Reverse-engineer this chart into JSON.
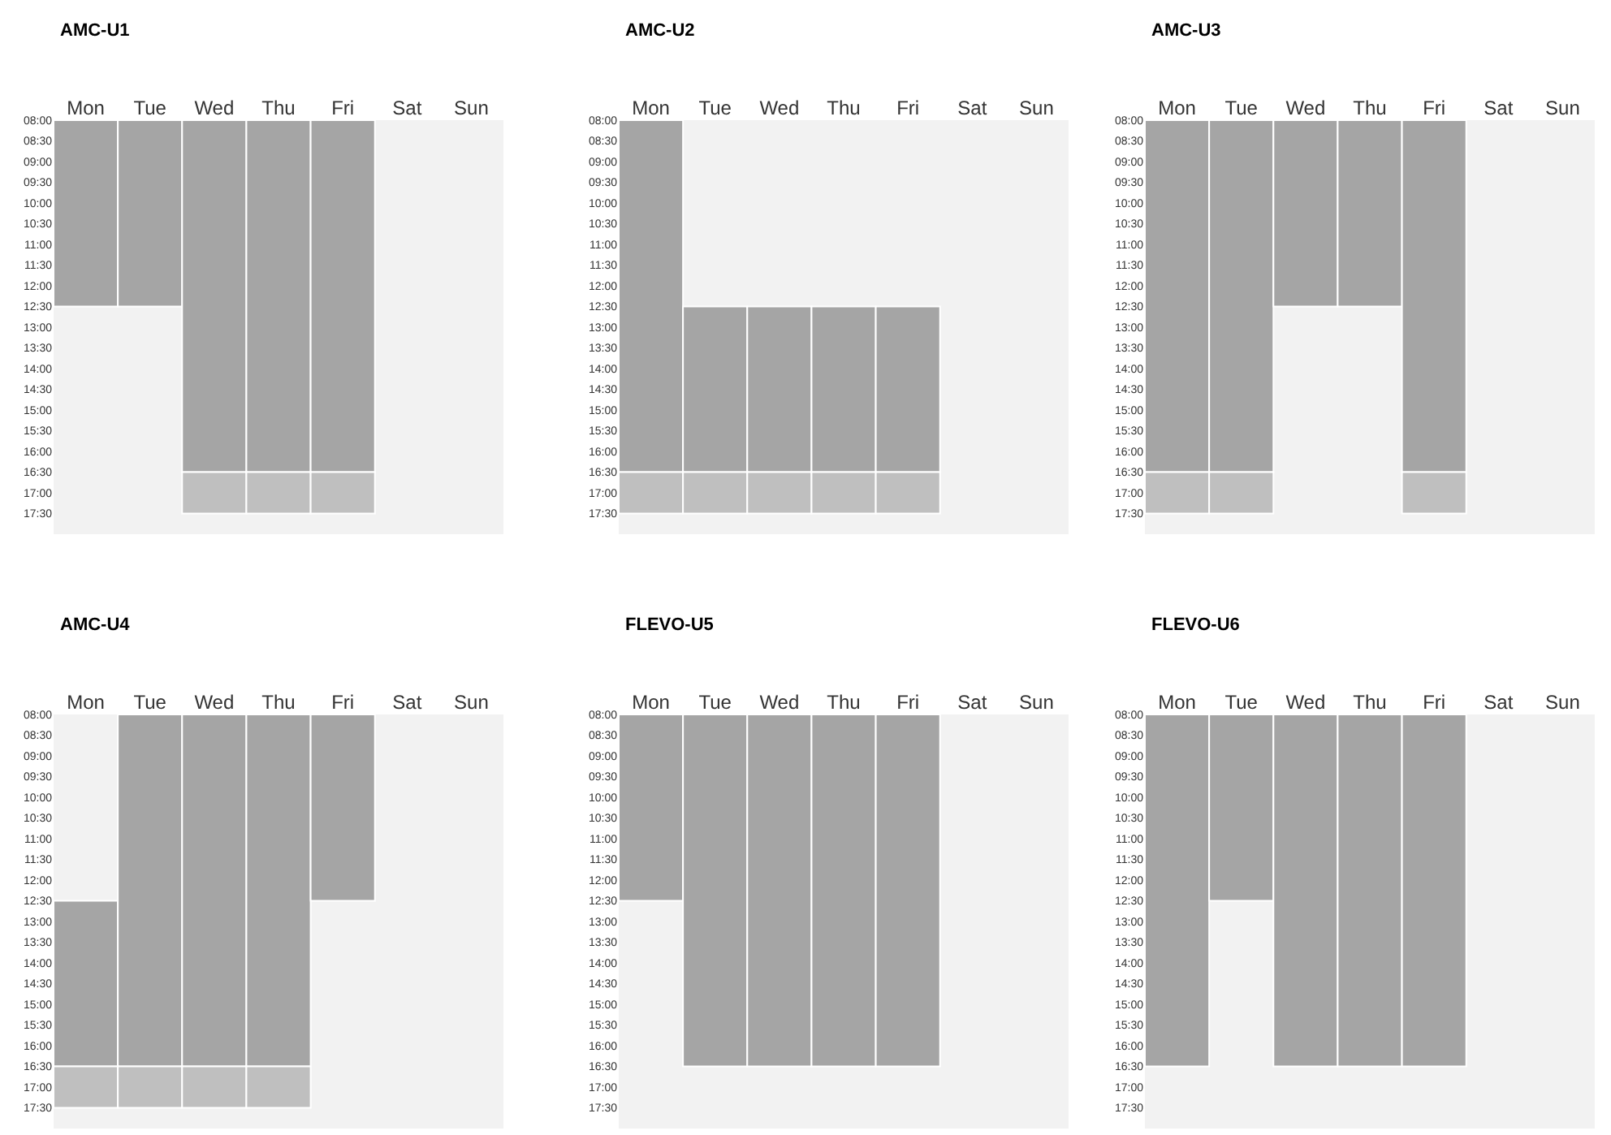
{
  "chart_data": [
    {
      "type": "bar",
      "title": "AMC-U1",
      "categories": [
        "Mon",
        "Tue",
        "Wed",
        "Thu",
        "Fri",
        "Sat",
        "Sun"
      ],
      "ylim": [
        18,
        8
      ],
      "yticks": [
        {
          "value": 8,
          "label": "08:00"
        },
        {
          "value": 8.5,
          "label": "08:30"
        },
        {
          "value": 9,
          "label": "09:00"
        },
        {
          "value": 9.5,
          "label": "09:30"
        },
        {
          "value": 10,
          "label": "10:00"
        },
        {
          "value": 10.5,
          "label": "10:30"
        },
        {
          "value": 11,
          "label": "11:00"
        },
        {
          "value": 11.5,
          "label": "11:30"
        },
        {
          "value": 12,
          "label": "12:00"
        },
        {
          "value": 12.5,
          "label": "12:30"
        },
        {
          "value": 13,
          "label": "13:00"
        },
        {
          "value": 13.5,
          "label": "13:30"
        },
        {
          "value": 14,
          "label": "14:00"
        },
        {
          "value": 14.5,
          "label": "14:30"
        },
        {
          "value": 15,
          "label": "15:00"
        },
        {
          "value": 15.5,
          "label": "15:30"
        },
        {
          "value": 16,
          "label": "16:00"
        },
        {
          "value": 16.5,
          "label": "16:30"
        },
        {
          "value": 17,
          "label": "17:00"
        },
        {
          "value": 17.5,
          "label": "17:30"
        }
      ],
      "series": [
        {
          "color": "#a5a5a5",
          "base": [
            8,
            8,
            8,
            8,
            8,
            null,
            null
          ],
          "values": [
            4.5,
            4.5,
            8.5,
            8.5,
            8.5,
            null,
            null
          ]
        },
        {
          "color": "#bfbfbf",
          "base": [
            null,
            null,
            16.5,
            16.5,
            16.5,
            null,
            null
          ],
          "values": [
            null,
            null,
            1,
            1,
            1,
            null,
            null
          ]
        }
      ]
    },
    {
      "type": "bar",
      "title": "AMC-U2",
      "categories": [
        "Mon",
        "Tue",
        "Wed",
        "Thu",
        "Fri",
        "Sat",
        "Sun"
      ],
      "ylim": [
        18,
        8
      ],
      "yticks": [
        {
          "value": 8,
          "label": "08:00"
        },
        {
          "value": 8.5,
          "label": "08:30"
        },
        {
          "value": 9,
          "label": "09:00"
        },
        {
          "value": 9.5,
          "label": "09:30"
        },
        {
          "value": 10,
          "label": "10:00"
        },
        {
          "value": 10.5,
          "label": "10:30"
        },
        {
          "value": 11,
          "label": "11:00"
        },
        {
          "value": 11.5,
          "label": "11:30"
        },
        {
          "value": 12,
          "label": "12:00"
        },
        {
          "value": 12.5,
          "label": "12:30"
        },
        {
          "value": 13,
          "label": "13:00"
        },
        {
          "value": 13.5,
          "label": "13:30"
        },
        {
          "value": 14,
          "label": "14:00"
        },
        {
          "value": 14.5,
          "label": "14:30"
        },
        {
          "value": 15,
          "label": "15:00"
        },
        {
          "value": 15.5,
          "label": "15:30"
        },
        {
          "value": 16,
          "label": "16:00"
        },
        {
          "value": 16.5,
          "label": "16:30"
        },
        {
          "value": 17,
          "label": "17:00"
        },
        {
          "value": 17.5,
          "label": "17:30"
        }
      ],
      "series": [
        {
          "color": "#a5a5a5",
          "base": [
            8,
            12.5,
            12.5,
            12.5,
            12.5,
            null,
            null
          ],
          "values": [
            8.5,
            4,
            4,
            4,
            4,
            null,
            null
          ]
        },
        {
          "color": "#bfbfbf",
          "base": [
            16.5,
            16.5,
            16.5,
            16.5,
            16.5,
            null,
            null
          ],
          "values": [
            1,
            1,
            1,
            1,
            1,
            null,
            null
          ]
        }
      ]
    },
    {
      "type": "bar",
      "title": "AMC-U3",
      "categories": [
        "Mon",
        "Tue",
        "Wed",
        "Thu",
        "Fri",
        "Sat",
        "Sun"
      ],
      "ylim": [
        18,
        8
      ],
      "yticks": [
        {
          "value": 8,
          "label": "08:00"
        },
        {
          "value": 8.5,
          "label": "08:30"
        },
        {
          "value": 9,
          "label": "09:00"
        },
        {
          "value": 9.5,
          "label": "09:30"
        },
        {
          "value": 10,
          "label": "10:00"
        },
        {
          "value": 10.5,
          "label": "10:30"
        },
        {
          "value": 11,
          "label": "11:00"
        },
        {
          "value": 11.5,
          "label": "11:30"
        },
        {
          "value": 12,
          "label": "12:00"
        },
        {
          "value": 12.5,
          "label": "12:30"
        },
        {
          "value": 13,
          "label": "13:00"
        },
        {
          "value": 13.5,
          "label": "13:30"
        },
        {
          "value": 14,
          "label": "14:00"
        },
        {
          "value": 14.5,
          "label": "14:30"
        },
        {
          "value": 15,
          "label": "15:00"
        },
        {
          "value": 15.5,
          "label": "15:30"
        },
        {
          "value": 16,
          "label": "16:00"
        },
        {
          "value": 16.5,
          "label": "16:30"
        },
        {
          "value": 17,
          "label": "17:00"
        },
        {
          "value": 17.5,
          "label": "17:30"
        }
      ],
      "series": [
        {
          "color": "#a5a5a5",
          "base": [
            8,
            8,
            8,
            8,
            8,
            null,
            null
          ],
          "values": [
            8.5,
            8.5,
            4.5,
            4.5,
            8.5,
            null,
            null
          ]
        },
        {
          "color": "#bfbfbf",
          "base": [
            16.5,
            16.5,
            null,
            null,
            16.5,
            null,
            null
          ],
          "values": [
            1,
            1,
            null,
            null,
            1,
            null,
            null
          ]
        }
      ]
    },
    {
      "type": "bar",
      "title": "AMC-U4",
      "categories": [
        "Mon",
        "Tue",
        "Wed",
        "Thu",
        "Fri",
        "Sat",
        "Sun"
      ],
      "ylim": [
        18,
        8
      ],
      "yticks": [
        {
          "value": 8,
          "label": "08:00"
        },
        {
          "value": 8.5,
          "label": "08:30"
        },
        {
          "value": 9,
          "label": "09:00"
        },
        {
          "value": 9.5,
          "label": "09:30"
        },
        {
          "value": 10,
          "label": "10:00"
        },
        {
          "value": 10.5,
          "label": "10:30"
        },
        {
          "value": 11,
          "label": "11:00"
        },
        {
          "value": 11.5,
          "label": "11:30"
        },
        {
          "value": 12,
          "label": "12:00"
        },
        {
          "value": 12.5,
          "label": "12:30"
        },
        {
          "value": 13,
          "label": "13:00"
        },
        {
          "value": 13.5,
          "label": "13:30"
        },
        {
          "value": 14,
          "label": "14:00"
        },
        {
          "value": 14.5,
          "label": "14:30"
        },
        {
          "value": 15,
          "label": "15:00"
        },
        {
          "value": 15.5,
          "label": "15:30"
        },
        {
          "value": 16,
          "label": "16:00"
        },
        {
          "value": 16.5,
          "label": "16:30"
        },
        {
          "value": 17,
          "label": "17:00"
        },
        {
          "value": 17.5,
          "label": "17:30"
        }
      ],
      "series": [
        {
          "color": "#a5a5a5",
          "base": [
            12.5,
            8,
            8,
            8,
            8,
            null,
            null
          ],
          "values": [
            4,
            8.5,
            8.5,
            8.5,
            4.5,
            null,
            null
          ]
        },
        {
          "color": "#bfbfbf",
          "base": [
            16.5,
            16.5,
            16.5,
            16.5,
            null,
            null,
            null
          ],
          "values": [
            1,
            1,
            1,
            1,
            null,
            null,
            null
          ]
        }
      ]
    },
    {
      "type": "bar",
      "title": "FLEVO-U5",
      "categories": [
        "Mon",
        "Tue",
        "Wed",
        "Thu",
        "Fri",
        "Sat",
        "Sun"
      ],
      "ylim": [
        18,
        8
      ],
      "yticks": [
        {
          "value": 8,
          "label": "08:00"
        },
        {
          "value": 8.5,
          "label": "08:30"
        },
        {
          "value": 9,
          "label": "09:00"
        },
        {
          "value": 9.5,
          "label": "09:30"
        },
        {
          "value": 10,
          "label": "10:00"
        },
        {
          "value": 10.5,
          "label": "10:30"
        },
        {
          "value": 11,
          "label": "11:00"
        },
        {
          "value": 11.5,
          "label": "11:30"
        },
        {
          "value": 12,
          "label": "12:00"
        },
        {
          "value": 12.5,
          "label": "12:30"
        },
        {
          "value": 13,
          "label": "13:00"
        },
        {
          "value": 13.5,
          "label": "13:30"
        },
        {
          "value": 14,
          "label": "14:00"
        },
        {
          "value": 14.5,
          "label": "14:30"
        },
        {
          "value": 15,
          "label": "15:00"
        },
        {
          "value": 15.5,
          "label": "15:30"
        },
        {
          "value": 16,
          "label": "16:00"
        },
        {
          "value": 16.5,
          "label": "16:30"
        },
        {
          "value": 17,
          "label": "17:00"
        },
        {
          "value": 17.5,
          "label": "17:30"
        }
      ],
      "series": [
        {
          "color": "#a5a5a5",
          "base": [
            8,
            8,
            8,
            8,
            8,
            null,
            null
          ],
          "values": [
            4.5,
            8.5,
            8.5,
            8.5,
            8.5,
            null,
            null
          ]
        }
      ]
    },
    {
      "type": "bar",
      "title": "FLEVO-U6",
      "categories": [
        "Mon",
        "Tue",
        "Wed",
        "Thu",
        "Fri",
        "Sat",
        "Sun"
      ],
      "ylim": [
        18,
        8
      ],
      "yticks": [
        {
          "value": 8,
          "label": "08:00"
        },
        {
          "value": 8.5,
          "label": "08:30"
        },
        {
          "value": 9,
          "label": "09:00"
        },
        {
          "value": 9.5,
          "label": "09:30"
        },
        {
          "value": 10,
          "label": "10:00"
        },
        {
          "value": 10.5,
          "label": "10:30"
        },
        {
          "value": 11,
          "label": "11:00"
        },
        {
          "value": 11.5,
          "label": "11:30"
        },
        {
          "value": 12,
          "label": "12:00"
        },
        {
          "value": 12.5,
          "label": "12:30"
        },
        {
          "value": 13,
          "label": "13:00"
        },
        {
          "value": 13.5,
          "label": "13:30"
        },
        {
          "value": 14,
          "label": "14:00"
        },
        {
          "value": 14.5,
          "label": "14:30"
        },
        {
          "value": 15,
          "label": "15:00"
        },
        {
          "value": 15.5,
          "label": "15:30"
        },
        {
          "value": 16,
          "label": "16:00"
        },
        {
          "value": 16.5,
          "label": "16:30"
        },
        {
          "value": 17,
          "label": "17:00"
        },
        {
          "value": 17.5,
          "label": "17:30"
        }
      ],
      "series": [
        {
          "color": "#a5a5a5",
          "base": [
            8,
            8,
            8,
            8,
            8,
            null,
            null
          ],
          "values": [
            8.5,
            4.5,
            8.5,
            8.5,
            8.5,
            null,
            null
          ]
        }
      ]
    }
  ]
}
